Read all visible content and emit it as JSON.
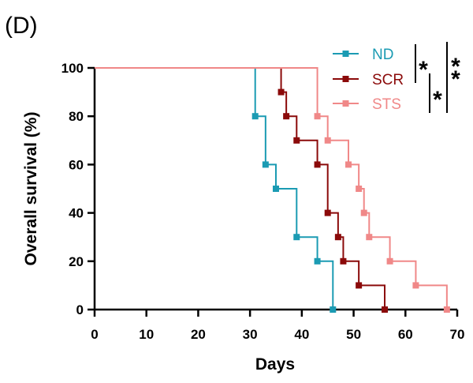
{
  "panel_label": "(D)",
  "chart_data": {
    "type": "line",
    "subtype": "kaplan-meier step",
    "xlabel": "Days",
    "ylabel": "Overall survival (%)",
    "xlim": [
      0,
      70
    ],
    "ylim": [
      0,
      100
    ],
    "xticks": [
      0,
      10,
      20,
      30,
      40,
      50,
      60,
      70
    ],
    "yticks": [
      0,
      20,
      40,
      60,
      80,
      100
    ],
    "grid": false,
    "legend_position": "top-right",
    "series": [
      {
        "name": "ND",
        "color": "#1b9bb3",
        "steps": [
          [
            0,
            100
          ],
          [
            31,
            80
          ],
          [
            33,
            60
          ],
          [
            35,
            50
          ],
          [
            39,
            30
          ],
          [
            43,
            20
          ],
          [
            46,
            0
          ]
        ]
      },
      {
        "name": "SCR",
        "color": "#8b0a0a",
        "steps": [
          [
            0,
            100
          ],
          [
            36,
            90
          ],
          [
            37,
            80
          ],
          [
            39,
            70
          ],
          [
            43,
            60
          ],
          [
            45,
            40
          ],
          [
            47,
            30
          ],
          [
            48,
            20
          ],
          [
            51,
            10
          ],
          [
            56,
            0
          ]
        ]
      },
      {
        "name": "STS",
        "color": "#f08888",
        "steps": [
          [
            0,
            100
          ],
          [
            43,
            80
          ],
          [
            45,
            70
          ],
          [
            49,
            60
          ],
          [
            51,
            50
          ],
          [
            52,
            40
          ],
          [
            53,
            30
          ],
          [
            57,
            20
          ],
          [
            62,
            10
          ],
          [
            68,
            0
          ]
        ]
      }
    ],
    "significance": [
      {
        "pair": [
          "ND",
          "SCR"
        ],
        "label": "*"
      },
      {
        "pair": [
          "SCR",
          "STS"
        ],
        "label": "*"
      },
      {
        "pair": [
          "ND",
          "STS"
        ],
        "label": "**"
      }
    ]
  }
}
